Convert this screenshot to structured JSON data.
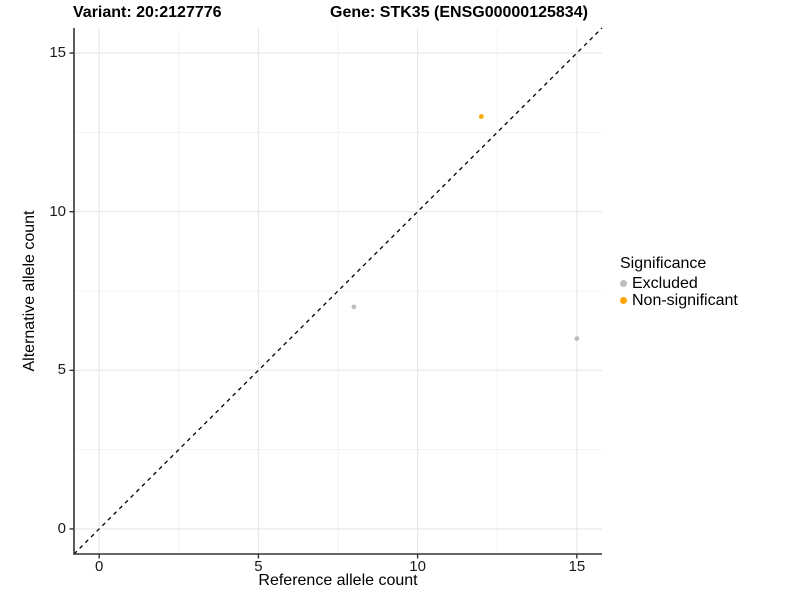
{
  "titles": {
    "left": "Variant: 20:2127776",
    "right": "Gene: STK35 (ENSG00000125834)"
  },
  "legend": {
    "title": "Significance",
    "items": [
      {
        "label": "Excluded",
        "color": "#BDBDBD"
      },
      {
        "label": "Non-significant",
        "color": "#FFA500"
      }
    ]
  },
  "colors": {
    "axis_line": "#333333",
    "tick_mark": "#333333",
    "grid_major": "#E5E5E5",
    "grid_minor": "#F0F0F0",
    "reference_line": "#000000",
    "background": "#FFFFFF"
  },
  "chart_data": {
    "type": "scatter",
    "title": "Variant: 20:2127776   Gene: STK35 (ENSG00000125834)",
    "xlabel": "Reference allele count",
    "ylabel": "Alternative allele count",
    "xlim": [
      -0.79,
      15.79
    ],
    "ylim": [
      -0.79,
      15.79
    ],
    "x_ticks": [
      0,
      5,
      10,
      15
    ],
    "y_ticks": [
      0,
      5,
      10,
      15
    ],
    "x_minor_ticks": [
      2.5,
      7.5,
      12.5
    ],
    "y_minor_ticks": [
      2.5,
      7.5,
      12.5
    ],
    "grid": true,
    "legend_position": "right",
    "reference_line": {
      "kind": "identity y=x",
      "style": "dashed",
      "from": [
        -0.79,
        -0.79
      ],
      "to": [
        15.79,
        15.79
      ]
    },
    "series": [
      {
        "name": "Excluded",
        "color": "#BDBDBD",
        "points": [
          [
            8,
            7
          ],
          [
            15,
            6
          ]
        ]
      },
      {
        "name": "Non-significant",
        "color": "#FFA500",
        "points": [
          [
            12,
            13
          ]
        ]
      }
    ]
  }
}
